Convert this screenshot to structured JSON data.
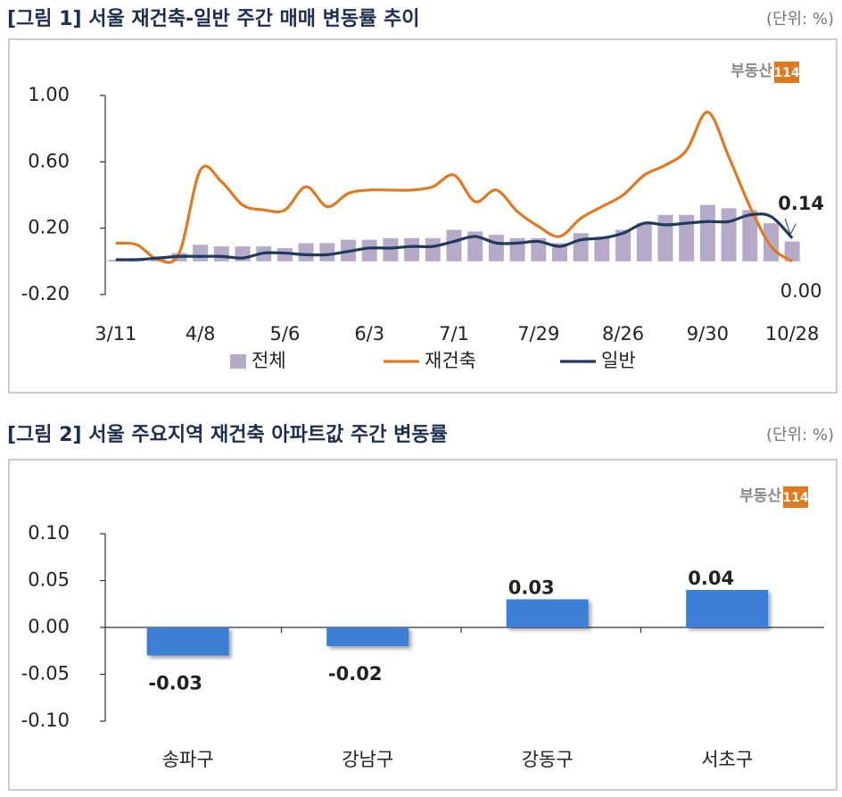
{
  "chart_data": [
    {
      "type": "combo",
      "title": "[그림 1] 서울 재건축-일반 주간 매매 변동률 추이",
      "unit": "(단위: %)",
      "logo": {
        "text": "부동산",
        "badge": "114"
      },
      "categories": [
        "3/11",
        null,
        null,
        null,
        "4/8",
        null,
        null,
        null,
        "5/6",
        null,
        null,
        null,
        "6/3",
        null,
        null,
        null,
        "7/1",
        null,
        null,
        null,
        "7/29",
        null,
        null,
        null,
        "8/26",
        null,
        null,
        null,
        "9/30",
        null,
        null,
        null,
        "10/28"
      ],
      "ylim": [
        -0.2,
        1.0
      ],
      "yticks": [
        {
          "value": -0.2,
          "label": "-0.20"
        },
        {
          "value": 0.2,
          "label": "0.20"
        },
        {
          "value": 0.6,
          "label": "0.60"
        },
        {
          "value": 1.0,
          "label": "1.00"
        }
      ],
      "grid": false,
      "series": [
        {
          "name": "전체",
          "type": "bar",
          "color": "#b5abc9",
          "values": [
            0.01,
            0.02,
            0.03,
            0.05,
            0.1,
            0.09,
            0.09,
            0.09,
            0.08,
            0.11,
            0.11,
            0.13,
            0.13,
            0.14,
            0.14,
            0.14,
            0.19,
            0.18,
            0.16,
            0.14,
            0.14,
            0.11,
            0.17,
            0.15,
            0.19,
            0.23,
            0.28,
            0.28,
            0.34,
            0.32,
            0.31,
            0.23,
            0.12
          ]
        },
        {
          "name": "재건축",
          "type": "line",
          "color": "#e07a22",
          "values": [
            0.11,
            0.1,
            0.01,
            0.05,
            0.55,
            0.48,
            0.34,
            0.31,
            0.31,
            0.45,
            0.33,
            0.41,
            0.43,
            0.43,
            0.43,
            0.45,
            0.52,
            0.36,
            0.43,
            0.3,
            0.21,
            0.15,
            0.26,
            0.33,
            0.4,
            0.52,
            0.58,
            0.67,
            0.9,
            0.63,
            0.33,
            0.09,
            0.0
          ],
          "value_labels": [
            null,
            null,
            null,
            null,
            null,
            null,
            null,
            null,
            null,
            null,
            null,
            null,
            null,
            null,
            null,
            null,
            null,
            null,
            null,
            null,
            null,
            null,
            null,
            null,
            null,
            null,
            null,
            null,
            null,
            null,
            null,
            null,
            "0.00"
          ]
        },
        {
          "name": "일반",
          "type": "line",
          "color": "#1f3a5c",
          "values": [
            0.01,
            0.01,
            0.02,
            0.03,
            0.03,
            0.03,
            0.02,
            0.05,
            0.05,
            0.04,
            0.04,
            0.06,
            0.08,
            0.08,
            0.09,
            0.09,
            0.12,
            0.15,
            0.11,
            0.11,
            0.12,
            0.09,
            0.13,
            0.14,
            0.17,
            0.23,
            0.22,
            0.23,
            0.24,
            0.24,
            0.28,
            0.27,
            0.14
          ],
          "value_labels": [
            null,
            null,
            null,
            null,
            null,
            null,
            null,
            null,
            null,
            null,
            null,
            null,
            null,
            null,
            null,
            null,
            null,
            null,
            null,
            null,
            null,
            null,
            null,
            null,
            null,
            null,
            null,
            null,
            null,
            null,
            null,
            null,
            "0.14"
          ]
        }
      ]
    },
    {
      "type": "bar",
      "title": "[그림 2] 서울 주요지역 재건축 아파트값 주간 변동률",
      "unit": "(단위: %)",
      "logo": {
        "text": "부동산",
        "badge": "114"
      },
      "categories": [
        "송파구",
        "강남구",
        "강동구",
        "서초구"
      ],
      "values": [
        -0.03,
        -0.02,
        0.03,
        0.04
      ],
      "color": "#3b7fd6",
      "ylim": [
        -0.1,
        0.1
      ],
      "yticks": [
        {
          "value": -0.1,
          "label": "-0.10"
        },
        {
          "value": -0.05,
          "label": "-0.05"
        },
        {
          "value": 0,
          "label": "0.00"
        },
        {
          "value": 0.05,
          "label": "0.05"
        },
        {
          "value": 0.1,
          "label": "0.10"
        }
      ],
      "grid": false
    }
  ]
}
